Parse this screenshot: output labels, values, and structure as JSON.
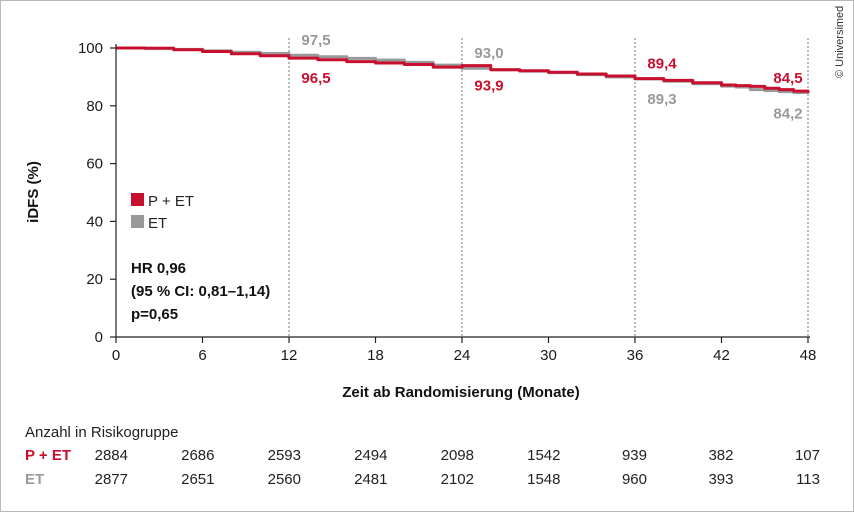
{
  "credit": "© Universimed",
  "chart_data": {
    "type": "line",
    "title": "",
    "xlabel": "Zeit ab Randomisierung (Monate)",
    "ylabel": "iDFS (%)",
    "xlim": [
      0,
      48
    ],
    "ylim": [
      0,
      100
    ],
    "xticks": [
      0,
      6,
      12,
      18,
      24,
      30,
      36,
      42,
      48
    ],
    "yticks": [
      0,
      20,
      40,
      60,
      80,
      100
    ],
    "grid": false,
    "vlines": [
      12,
      24,
      36,
      48
    ],
    "legend_position": "left-middle",
    "legend": [
      {
        "label": "P + ET",
        "color": "#c8102e"
      },
      {
        "label": "ET",
        "color": "#999999"
      }
    ],
    "series": [
      {
        "name": "ET",
        "color": "#999999",
        "x": [
          0,
          2,
          4,
          6,
          8,
          10,
          12,
          14,
          16,
          18,
          20,
          22,
          24,
          26,
          28,
          30,
          32,
          34,
          36,
          38,
          40,
          42,
          43,
          44,
          45,
          46,
          47,
          48
        ],
        "y": [
          100,
          99.9,
          99.5,
          99.0,
          98.5,
          98.1,
          97.5,
          97.0,
          96.4,
          95.8,
          95.0,
          94.1,
          93.0,
          92.5,
          92.0,
          91.5,
          90.8,
          90.0,
          89.3,
          88.5,
          87.6,
          86.8,
          86.5,
          85.6,
          85.3,
          84.9,
          84.6,
          84.2
        ]
      },
      {
        "name": "P + ET",
        "color": "#c8102e",
        "x": [
          0,
          2,
          4,
          6,
          8,
          10,
          12,
          14,
          16,
          18,
          20,
          22,
          24,
          26,
          28,
          30,
          32,
          34,
          36,
          38,
          40,
          42,
          43,
          44,
          45,
          46,
          47,
          48
        ],
        "y": [
          100,
          99.9,
          99.4,
          98.8,
          98.0,
          97.3,
          96.5,
          95.9,
          95.3,
          94.8,
          94.3,
          93.4,
          93.9,
          92.5,
          92.1,
          91.6,
          91.0,
          90.3,
          89.4,
          88.8,
          88.0,
          87.2,
          87.0,
          86.7,
          86.1,
          85.6,
          85.1,
          84.5
        ]
      }
    ],
    "annotations": [
      {
        "series": "ET",
        "x": 12,
        "text": "97,5",
        "color": "#999999",
        "side": "above"
      },
      {
        "series": "P + ET",
        "x": 12,
        "text": "96,5",
        "color": "#c8102e",
        "side": "below"
      },
      {
        "series": "ET",
        "x": 24,
        "text": "93,0",
        "color": "#999999",
        "side": "above"
      },
      {
        "series": "P + ET",
        "x": 24,
        "text": "93,9",
        "color": "#c8102e",
        "side": "below"
      },
      {
        "series": "P + ET",
        "x": 36,
        "text": "89,4",
        "color": "#c8102e",
        "side": "above"
      },
      {
        "series": "ET",
        "x": 36,
        "text": "89,3",
        "color": "#999999",
        "side": "below"
      },
      {
        "series": "P + ET",
        "x": 48,
        "text": "84,5",
        "color": "#c8102e",
        "side": "above"
      },
      {
        "series": "ET",
        "x": 48,
        "text": "84,2",
        "color": "#999999",
        "side": "below"
      }
    ],
    "stats": [
      "HR 0,96",
      "(95 % CI: 0,81–1,14)",
      "p=0,65"
    ]
  },
  "risk_table": {
    "title": "Anzahl in Risikogruppe",
    "rows": [
      {
        "label": "P + ET",
        "color": "#c8102e",
        "values": [
          "2884",
          "2686",
          "2593",
          "2494",
          "2098",
          "1542",
          "939",
          "382",
          "107"
        ]
      },
      {
        "label": "ET",
        "color": "#999999",
        "values": [
          "2877",
          "2651",
          "2560",
          "2481",
          "2102",
          "1548",
          "960",
          "393",
          "113"
        ]
      }
    ]
  }
}
